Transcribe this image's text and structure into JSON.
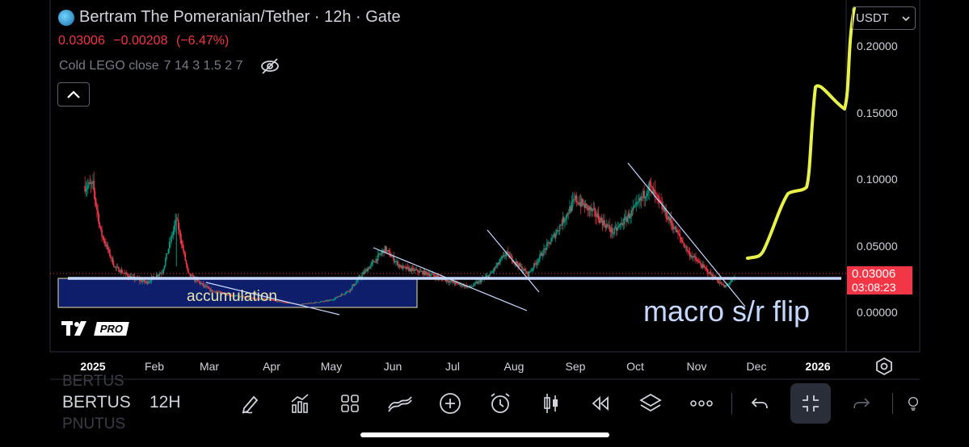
{
  "header": {
    "title": "Bertram The Pomeranian/Tether · 12h · Gate",
    "logo_icon": "coin-logo-icon",
    "price": "0.03006",
    "change": "−0.00208",
    "change_pct": "(−6.47%)",
    "indicator_name": "Cold LEGO close",
    "indicator_params": "7 14 3 1.5 2 7",
    "unit": "USDT"
  },
  "price_tag": {
    "price": "0.03006",
    "countdown": "03:08:23"
  },
  "colors": {
    "up": "#089981",
    "down": "#f23645",
    "annotation_yellow": "#e8f14a",
    "sr_line": "#c6d8ff",
    "box": "#0f1e6b"
  },
  "annotations": {
    "accumulation": "accumulation",
    "macro": "macro s/r flip"
  },
  "branding": {
    "tv_logo": "17",
    "pro": "PRO"
  },
  "toolbar": {
    "symbol": "BERTUS",
    "interval": "12H",
    "ghost_above": "BERTUS",
    "ghost_below": "PNUTUS",
    "icons": [
      "pen-icon",
      "indicators-icon",
      "layout-grid-icon",
      "compare-icon",
      "add-icon",
      "alarm-icon",
      "candle-style-icon",
      "replay-icon",
      "layers-icon",
      "more-icon",
      "undo-icon",
      "collapse-icon",
      "redo-icon",
      "lightbulb-icon"
    ]
  },
  "chart_data": {
    "type": "candlestick",
    "y_ticks": [
      {
        "label": "0.20000",
        "value": 0.2
      },
      {
        "label": "0.15000",
        "value": 0.15
      },
      {
        "label": "0.10000",
        "value": 0.1
      },
      {
        "label": "0.05000",
        "value": 0.05
      },
      {
        "label": "0.00000",
        "value": 0.0
      }
    ],
    "x_ticks": [
      "2025",
      "Feb",
      "Mar",
      "Apr",
      "May",
      "Jun",
      "Jul",
      "Aug",
      "Sep",
      "Oct",
      "Nov",
      "Dec",
      "2026"
    ],
    "current_price": 0.03006,
    "series_approx": [
      {
        "t": "2025-01-01",
        "v": 0.095
      },
      {
        "t": "2025-01-05",
        "v": 0.06
      },
      {
        "t": "2025-01-12",
        "v": 0.035
      },
      {
        "t": "2025-01-20",
        "v": 0.028
      },
      {
        "t": "2025-01-28",
        "v": 0.025
      },
      {
        "t": "2025-02-05",
        "v": 0.032
      },
      {
        "t": "2025-02-12",
        "v": 0.07
      },
      {
        "t": "2025-02-18",
        "v": 0.03
      },
      {
        "t": "2025-03-01",
        "v": 0.02
      },
      {
        "t": "2025-03-15",
        "v": 0.015
      },
      {
        "t": "2025-04-01",
        "v": 0.012
      },
      {
        "t": "2025-04-15",
        "v": 0.008
      },
      {
        "t": "2025-05-01",
        "v": 0.012
      },
      {
        "t": "2025-05-10",
        "v": 0.02
      },
      {
        "t": "2025-05-20",
        "v": 0.035
      },
      {
        "t": "2025-05-28",
        "v": 0.048
      },
      {
        "t": "2025-06-05",
        "v": 0.035
      },
      {
        "t": "2025-06-20",
        "v": 0.03
      },
      {
        "t": "2025-07-01",
        "v": 0.025
      },
      {
        "t": "2025-07-10",
        "v": 0.022
      },
      {
        "t": "2025-07-20",
        "v": 0.03
      },
      {
        "t": "2025-07-28",
        "v": 0.045
      },
      {
        "t": "2025-08-08",
        "v": 0.03
      },
      {
        "t": "2025-08-20",
        "v": 0.055
      },
      {
        "t": "2025-09-01",
        "v": 0.085
      },
      {
        "t": "2025-09-10",
        "v": 0.075
      },
      {
        "t": "2025-09-20",
        "v": 0.06
      },
      {
        "t": "2025-10-01",
        "v": 0.078
      },
      {
        "t": "2025-10-08",
        "v": 0.095
      },
      {
        "t": "2025-10-18",
        "v": 0.07
      },
      {
        "t": "2025-10-28",
        "v": 0.045
      },
      {
        "t": "2025-11-08",
        "v": 0.03
      },
      {
        "t": "2025-11-15",
        "v": 0.022
      },
      {
        "t": "2025-11-22",
        "v": 0.03
      }
    ]
  }
}
